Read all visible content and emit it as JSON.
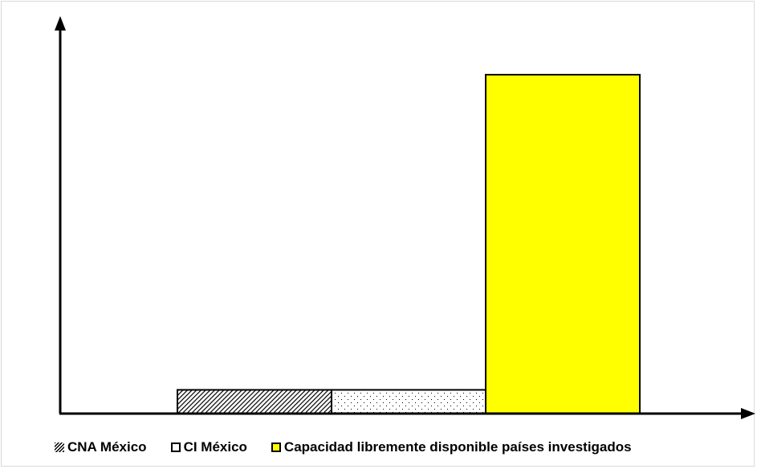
{
  "colors": {
    "axis": "#000000",
    "series_hatched": "#000000",
    "series_dotted": "#ffffff",
    "series_yellow": "#ffff00"
  },
  "chart_data": {
    "type": "bar",
    "title": "",
    "xlabel": "",
    "ylabel": "",
    "grid": false,
    "legend_position": "bottom",
    "axis_ticks": "none",
    "categories": [
      "CNA México",
      "CI México",
      "Capacidad libremente disponible países investigados"
    ],
    "values": [
      7,
      7,
      100
    ],
    "value_scale": "relative, no axis values printed; tallest bar = 100",
    "fills": [
      "diagonal-hatch",
      "dotted",
      "solid-yellow"
    ]
  },
  "legend": {
    "items": [
      {
        "label": "CNA México",
        "swatch": "hatched"
      },
      {
        "label": "CI México",
        "swatch": "white"
      },
      {
        "label": "Capacidad libremente disponible países investigados",
        "swatch": "yellow"
      }
    ]
  }
}
